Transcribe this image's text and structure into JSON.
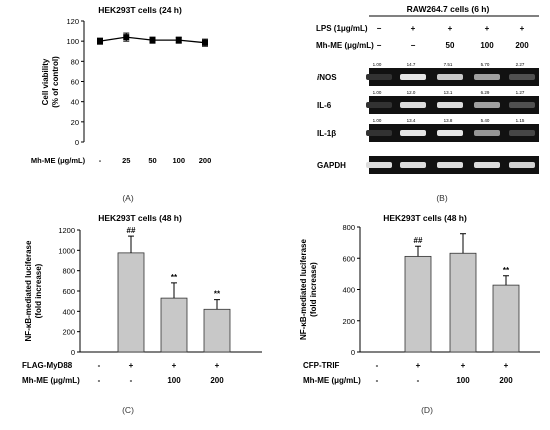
{
  "chart_data": [
    {
      "type": "line",
      "panel_label": "(A)",
      "title": "HEK293T cells (24 h)",
      "ylabel": "Cell viability\n(% of control)",
      "ylim": [
        0,
        120
      ],
      "yticks": [
        0,
        20,
        40,
        60,
        80,
        100,
        120
      ],
      "treatment_label": "Mh-ME (μg/mL)",
      "categories": [
        "-",
        "25",
        "50",
        "100",
        "200"
      ],
      "values": [
        100,
        104,
        101,
        101,
        98.5
      ],
      "errors": [
        3,
        4,
        3,
        3,
        3.5
      ]
    },
    {
      "type": "table",
      "panel_label": "(B)",
      "title": "RAW264.7 cells (6 h)",
      "conditions": [
        {
          "label": "LPS (1μg/mL)",
          "values": [
            "−",
            "+",
            "+",
            "+",
            "+"
          ]
        },
        {
          "label": "Mh-ME (μg/mL)",
          "values": [
            "−",
            "−",
            "50",
            "100",
            "200"
          ]
        }
      ],
      "bands": [
        {
          "name": "iNOS",
          "name_prefix": "i",
          "name_rest": "NOS",
          "ratios": [
            "1.00",
            "14.7",
            "7.51",
            "5.70",
            "2.27"
          ],
          "intensity": [
            0.05,
            0.95,
            0.8,
            0.6,
            0.2
          ]
        },
        {
          "name": "IL-6",
          "ratios": [
            "1.00",
            "12.0",
            "13.1",
            "6.29",
            "1.27"
          ],
          "intensity": [
            0.05,
            0.9,
            0.9,
            0.6,
            0.2
          ]
        },
        {
          "name": "IL-1β",
          "ratios": [
            "1.00",
            "13.4",
            "13.8",
            "5.40",
            "1.15"
          ],
          "intensity": [
            0.05,
            0.95,
            0.95,
            0.55,
            0.15
          ]
        },
        {
          "name": "GAPDH",
          "ratios": [],
          "intensity": [
            0.9,
            0.9,
            0.9,
            0.9,
            0.85
          ]
        }
      ]
    },
    {
      "type": "bar",
      "panel_label": "(C)",
      "title": "HEK293T cells (48 h)",
      "ylabel": "NF-κB-mediated luciferase\n(fold increase)",
      "ylim": [
        0,
        1200
      ],
      "yticks": [
        0,
        200,
        400,
        600,
        800,
        1000,
        1200
      ],
      "conditions": [
        {
          "label": "FLAG-MyD88",
          "values": [
            "-",
            "+",
            "+",
            "+"
          ]
        },
        {
          "label": "Mh-ME (μg/mL)",
          "values": [
            "-",
            "-",
            "100",
            "200"
          ]
        }
      ],
      "values": [
        0,
        975,
        530,
        420
      ],
      "errors": [
        0,
        165,
        150,
        95
      ],
      "annotations": [
        "",
        "##",
        "**",
        "**"
      ]
    },
    {
      "type": "bar",
      "panel_label": "(D)",
      "title": "HEK293T cells (48 h)",
      "ylabel": "NF-κB-mediated luciferase\n(fold increase)",
      "ylim": [
        0,
        800
      ],
      "yticks": [
        0,
        200,
        400,
        600,
        800
      ],
      "conditions": [
        {
          "label": "CFP-TRIF",
          "values": [
            "-",
            "+",
            "+",
            "+"
          ]
        },
        {
          "label": "Mh-ME (μg/mL)",
          "values": [
            "-",
            "-",
            "100",
            "200"
          ]
        }
      ],
      "values": [
        0,
        612,
        632,
        428
      ],
      "errors": [
        0,
        65,
        125,
        60
      ],
      "annotations": [
        "",
        "##",
        "",
        "**"
      ]
    }
  ]
}
